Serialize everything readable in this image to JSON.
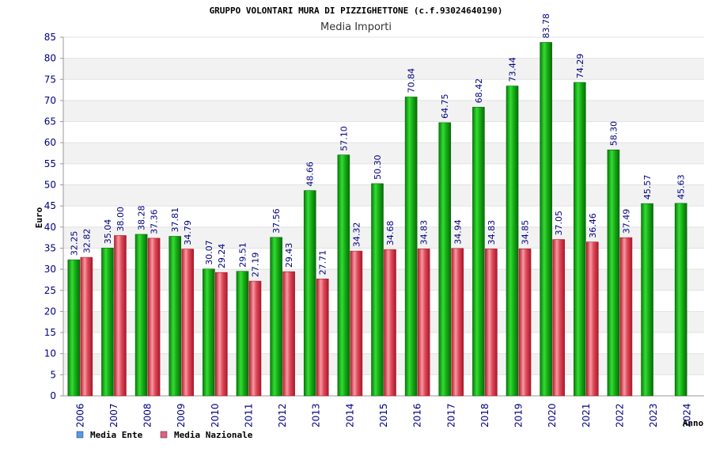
{
  "chart_data": {
    "type": "bar",
    "title": "GRUPPO VOLONTARI MURA DI PIZZIGHETTONE (c.f.93024640190)",
    "subtitle": "Media Importi",
    "xlabel": "Anno",
    "ylabel": "Euro",
    "ylim": [
      0,
      85
    ],
    "yticks": [
      0,
      5,
      10,
      15,
      20,
      25,
      30,
      35,
      40,
      45,
      50,
      55,
      60,
      65,
      70,
      75,
      80,
      85
    ],
    "grid": true,
    "legend_position": "bottom-left",
    "categories": [
      "2006",
      "2007",
      "2008",
      "2009",
      "2010",
      "2011",
      "2012",
      "2013",
      "2014",
      "2015",
      "2016",
      "2017",
      "2018",
      "2019",
      "2020",
      "2021",
      "2022",
      "2023",
      "2024"
    ],
    "series": [
      {
        "name": "Media Ente",
        "color": "#1fae1f",
        "legend_color": "#5599ee",
        "values": [
          32.25,
          35.04,
          38.28,
          37.81,
          30.07,
          29.51,
          37.56,
          48.66,
          57.1,
          50.3,
          70.84,
          64.75,
          68.42,
          73.44,
          83.78,
          74.29,
          58.3,
          45.57,
          45.63
        ],
        "labels": [
          "32.25",
          "35.04",
          "38.28",
          "37.81",
          "30.07",
          "29.51",
          "37.56",
          "48.66",
          "57.10",
          "50.30",
          "70.84",
          "64.75",
          "68.42",
          "73.44",
          "83.78",
          "74.29",
          "58.30",
          "45.57",
          "45.63"
        ]
      },
      {
        "name": "Media Nazionale",
        "color": "#e84a5a",
        "legend_color": "#e06080",
        "values": [
          32.82,
          38.0,
          37.36,
          34.79,
          29.24,
          27.19,
          29.43,
          27.71,
          34.32,
          34.68,
          34.83,
          34.94,
          34.83,
          34.85,
          37.05,
          36.46,
          37.49,
          null,
          null
        ],
        "labels": [
          "32.82",
          "38.00",
          "37.36",
          "34.79",
          "29.24",
          "27.19",
          "29.43",
          "27.71",
          "34.32",
          "34.68",
          "34.83",
          "34.94",
          "34.83",
          "34.85",
          "37.05",
          "36.46",
          "37.49",
          "",
          ""
        ]
      }
    ]
  }
}
